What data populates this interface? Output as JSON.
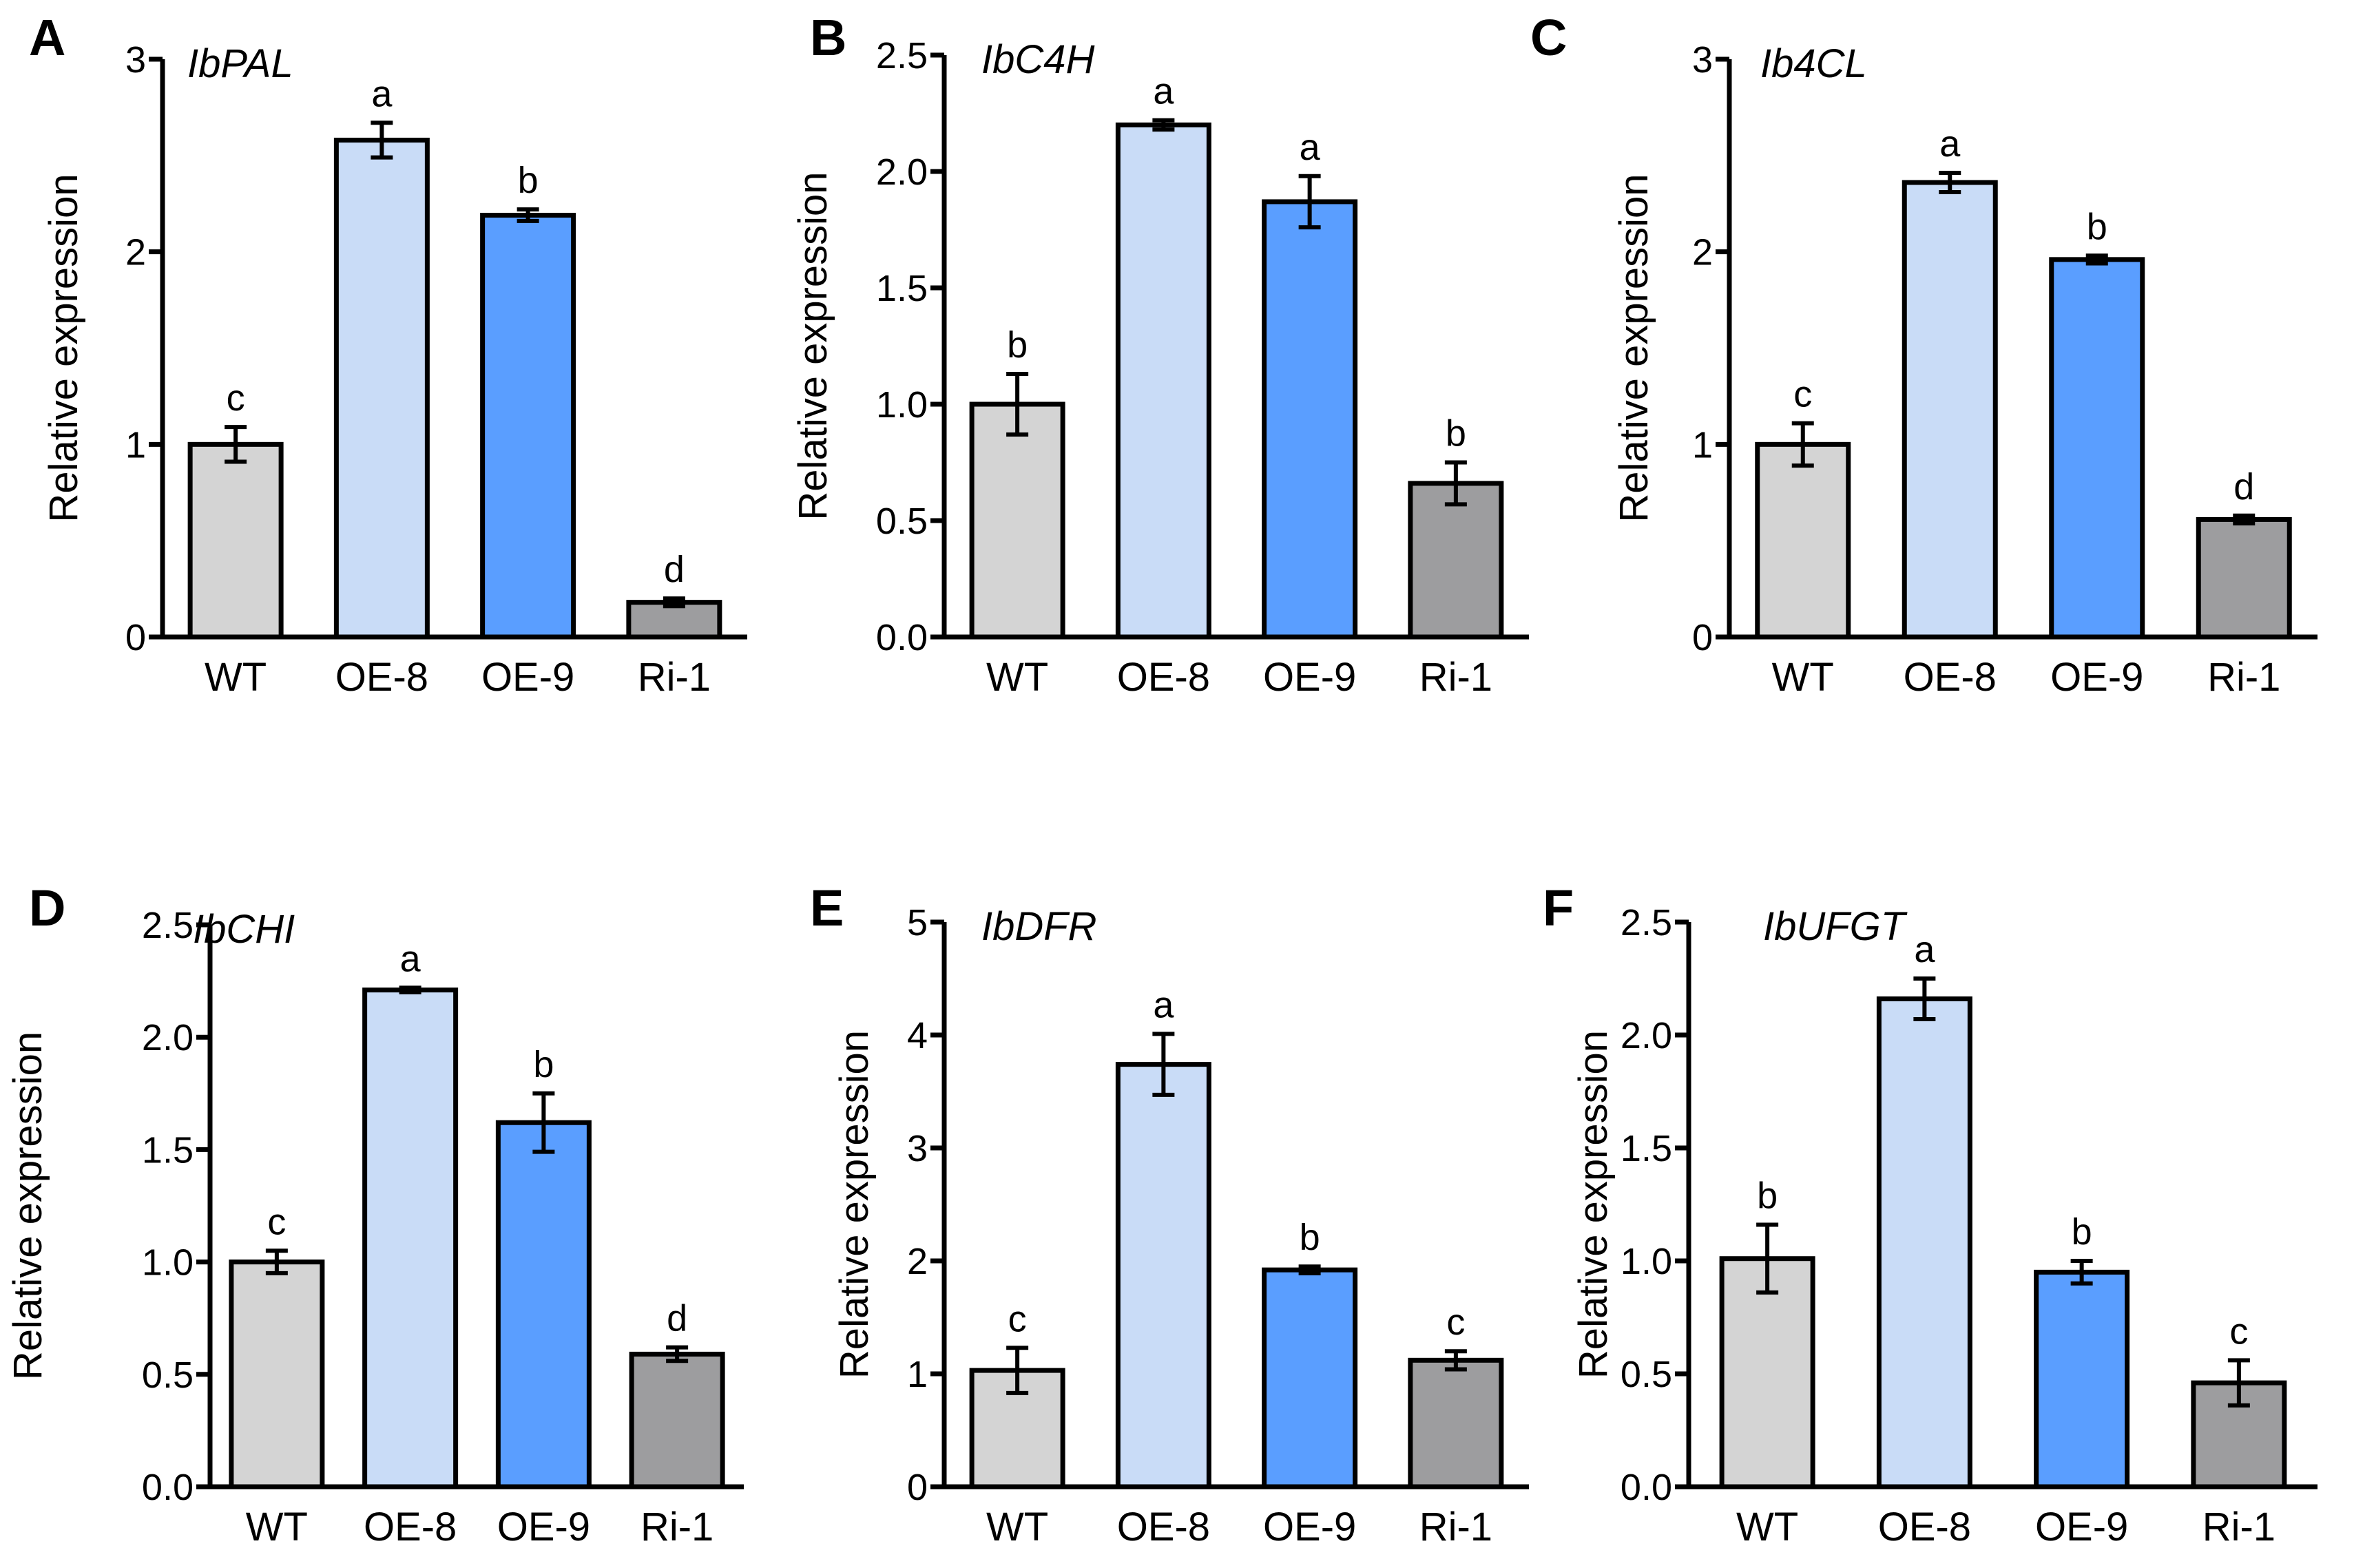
{
  "figure": {
    "categories": [
      "WT",
      "OE-8",
      "OE-9",
      "Ri-1"
    ],
    "colors": {
      "WT": "#d4d4d4",
      "OE-8": "#c9dcf7",
      "OE-9": "#5a9eff",
      "Ri-1": "#9d9d9f"
    },
    "outline_color": "#000000"
  },
  "chart_data": [
    {
      "type": "bar",
      "panel": "A",
      "title": "IbPAL",
      "ylabel": "Relative expression",
      "xlabel": "",
      "ylim": [
        0,
        3
      ],
      "yticks": [
        0,
        1,
        2,
        3
      ],
      "ytick_labels": [
        "0",
        "1",
        "2",
        "3"
      ],
      "categories": [
        "WT",
        "OE-8",
        "OE-9",
        "Ri-1"
      ],
      "values": [
        1.0,
        2.58,
        2.19,
        0.18
      ],
      "errors": [
        0.09,
        0.09,
        0.03,
        0.02
      ],
      "significance": [
        "c",
        "a",
        "b",
        "d"
      ]
    },
    {
      "type": "bar",
      "panel": "B",
      "title": "IbC4H",
      "ylabel": "Relative expression",
      "xlabel": "",
      "ylim": [
        0,
        2.5
      ],
      "yticks": [
        0,
        0.5,
        1.0,
        1.5,
        2.0,
        2.5
      ],
      "ytick_labels": [
        "0.0",
        "0.5",
        "1.0",
        "1.5",
        "2.0",
        "2.5"
      ],
      "categories": [
        "WT",
        "OE-8",
        "OE-9",
        "Ri-1"
      ],
      "values": [
        1.0,
        2.2,
        1.87,
        0.66
      ],
      "errors": [
        0.13,
        0.02,
        0.11,
        0.09
      ],
      "significance": [
        "b",
        "a",
        "a",
        "b"
      ]
    },
    {
      "type": "bar",
      "panel": "C",
      "title": "Ib4CL",
      "ylabel": "Relative expression",
      "xlabel": "",
      "ylim": [
        0,
        3
      ],
      "yticks": [
        0,
        1,
        2,
        3
      ],
      "ytick_labels": [
        "0",
        "1",
        "2",
        "3"
      ],
      "categories": [
        "WT",
        "OE-8",
        "OE-9",
        "Ri-1"
      ],
      "values": [
        1.0,
        2.36,
        1.96,
        0.61
      ],
      "errors": [
        0.11,
        0.05,
        0.02,
        0.02
      ],
      "significance": [
        "c",
        "a",
        "b",
        "d"
      ]
    },
    {
      "type": "bar",
      "panel": "D",
      "title": "IbCHI",
      "ylabel": "Relative expression",
      "xlabel": "",
      "ylim": [
        0,
        2.5
      ],
      "yticks": [
        0,
        0.5,
        1.0,
        1.5,
        2.0,
        2.5
      ],
      "ytick_labels": [
        "0.0",
        "0.5",
        "1.0",
        "1.5",
        "2.0",
        "2.5"
      ],
      "categories": [
        "WT",
        "OE-8",
        "OE-9",
        "Ri-1"
      ],
      "values": [
        1.0,
        2.21,
        1.62,
        0.59
      ],
      "errors": [
        0.05,
        0.01,
        0.13,
        0.03
      ],
      "significance": [
        "c",
        "a",
        "b",
        "d"
      ]
    },
    {
      "type": "bar",
      "panel": "E",
      "title": "IbDFR",
      "ylabel": "Relative expression",
      "xlabel": "",
      "ylim": [
        0,
        5
      ],
      "yticks": [
        0,
        1,
        2,
        3,
        4,
        5
      ],
      "ytick_labels": [
        "0",
        "1",
        "2",
        "3",
        "4",
        "5"
      ],
      "categories": [
        "WT",
        "OE-8",
        "OE-9",
        "Ri-1"
      ],
      "values": [
        1.03,
        3.74,
        1.92,
        1.12
      ],
      "errors": [
        0.2,
        0.27,
        0.03,
        0.08
      ],
      "significance": [
        "c",
        "a",
        "b",
        "c"
      ]
    },
    {
      "type": "bar",
      "panel": "F",
      "title": "IbUFGT",
      "ylabel": "Relative expression",
      "xlabel": "",
      "ylim": [
        0,
        2.5
      ],
      "yticks": [
        0,
        0.5,
        1.0,
        1.5,
        2.0,
        2.5
      ],
      "ytick_labels": [
        "0.0",
        "0.5",
        "1.0",
        "1.5",
        "2.0",
        "2.5"
      ],
      "categories": [
        "WT",
        "OE-8",
        "OE-9",
        "Ri-1"
      ],
      "values": [
        1.01,
        2.16,
        0.95,
        0.46
      ],
      "errors": [
        0.15,
        0.09,
        0.05,
        0.1
      ],
      "significance": [
        "b",
        "a",
        "b",
        "c"
      ]
    }
  ]
}
